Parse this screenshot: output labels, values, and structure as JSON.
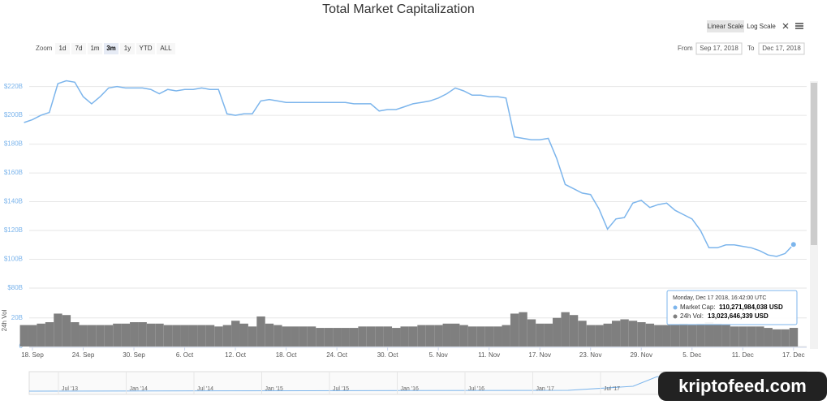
{
  "chart_data": {
    "type": "line",
    "title": "Total Market Capitalization",
    "zoom_label": "Zoom",
    "zoom_buttons": [
      "1d",
      "7d",
      "1m",
      "3m",
      "1y",
      "YTD",
      "ALL"
    ],
    "zoom_active": 3,
    "scale_buttons": [
      "Linear Scale",
      "Log Scale"
    ],
    "from_label": "From",
    "from": "Sep 17, 2018",
    "to_label": "To",
    "to": "Dec 17, 2018",
    "y2_label": "24h Vol",
    "categories": [
      null,
      "18. Sep",
      null,
      null,
      null,
      null,
      null,
      "24. Sep",
      null,
      null,
      null,
      null,
      null,
      "30. Sep",
      null,
      null,
      null,
      null,
      null,
      "6. Oct",
      null,
      null,
      null,
      null,
      null,
      "12. Oct",
      null,
      null,
      null,
      null,
      null,
      "18. Oct",
      null,
      null,
      null,
      null,
      null,
      "24. Oct",
      null,
      null,
      null,
      null,
      null,
      "30. Oct",
      null,
      null,
      null,
      null,
      null,
      "5. Nov",
      null,
      null,
      null,
      null,
      null,
      "11. Nov",
      null,
      null,
      null,
      null,
      null,
      "17. Nov",
      null,
      null,
      null,
      null,
      null,
      "23. Nov",
      null,
      null,
      null,
      null,
      null,
      "29. Nov",
      null,
      null,
      null,
      null,
      null,
      "5. Dec",
      null,
      null,
      null,
      null,
      null,
      "11. Dec",
      null,
      null,
      null,
      null,
      null,
      "17. Dec"
    ],
    "series": [
      {
        "color": "#7cb5ec",
        "values": [
          195,
          197,
          200,
          202,
          222,
          224,
          223,
          213,
          208,
          213,
          219,
          220,
          219,
          219,
          219,
          218,
          215,
          218,
          217,
          218,
          218,
          219,
          218,
          218,
          201,
          200,
          201,
          201,
          210,
          211,
          210,
          209,
          209,
          209,
          209,
          209,
          209,
          209,
          209,
          208,
          208,
          208,
          203,
          204,
          204,
          206,
          208,
          209,
          210,
          212,
          215,
          219,
          217,
          214,
          214,
          213,
          213,
          212,
          185,
          184,
          183,
          183,
          184,
          170,
          152,
          149,
          146,
          145,
          135,
          121,
          128,
          129,
          139,
          141,
          136,
          138,
          139,
          134,
          131,
          128,
          120,
          108,
          108,
          110,
          110,
          109,
          108,
          106,
          103,
          102,
          104,
          110.27
        ]
      },
      {
        "color": "#7f7f7f",
        "axis": "y2",
        "values": [
          15,
          15,
          16,
          17,
          23,
          22,
          17,
          15,
          15,
          15,
          15,
          16,
          16,
          17,
          17,
          16,
          16,
          15,
          15,
          15,
          15,
          15,
          15,
          14,
          15,
          18,
          16,
          14,
          21,
          16,
          15,
          14,
          14,
          14,
          14,
          13,
          13,
          13,
          13,
          13,
          14,
          14,
          14,
          14,
          13,
          14,
          14,
          15,
          15,
          15,
          16,
          16,
          15,
          14,
          14,
          14,
          14,
          15,
          23,
          24,
          19,
          16,
          16,
          20,
          24,
          22,
          18,
          15,
          15,
          16,
          18,
          19,
          18,
          17,
          16,
          15,
          15,
          15,
          16,
          15,
          16,
          17,
          16,
          15,
          14,
          14,
          14,
          14,
          13,
          12,
          12,
          13.02
        ]
      }
    ],
    "ylim": [
      80,
      226
    ],
    "yticks": [
      {
        "value": 80,
        "label": "$80B"
      },
      {
        "value": 100,
        "label": "$100B"
      },
      {
        "value": 120,
        "label": "$120B"
      },
      {
        "value": 140,
        "label": "$140B"
      },
      {
        "value": 160,
        "label": "$160B"
      },
      {
        "value": 180,
        "label": "$180B"
      },
      {
        "value": 200,
        "label": "$200B"
      },
      {
        "value": 220,
        "label": "$220B"
      }
    ],
    "y2lim": [
      0,
      38
    ],
    "y2ticks": [
      0,
      {
        "value": 20,
        "label": "20B"
      }
    ],
    "grid": true,
    "tooltip": {
      "date": "Monday, Dec 17 2018, 16:42:00 UTC",
      "rows": [
        {
          "label": "Market Cap:",
          "value": "110,271,984,038 USD"
        },
        {
          "label": "24h Vol:",
          "value": "13,023,646,339 USD"
        }
      ]
    },
    "navigator_labels": [
      "Jul '13",
      "Jan '14",
      "Jul '14",
      "Jan '15",
      "Jul '15",
      "Jan '16",
      "Jul '16",
      "Jan '17",
      "Jul '17"
    ],
    "watermark": "kriptofeed.com"
  }
}
